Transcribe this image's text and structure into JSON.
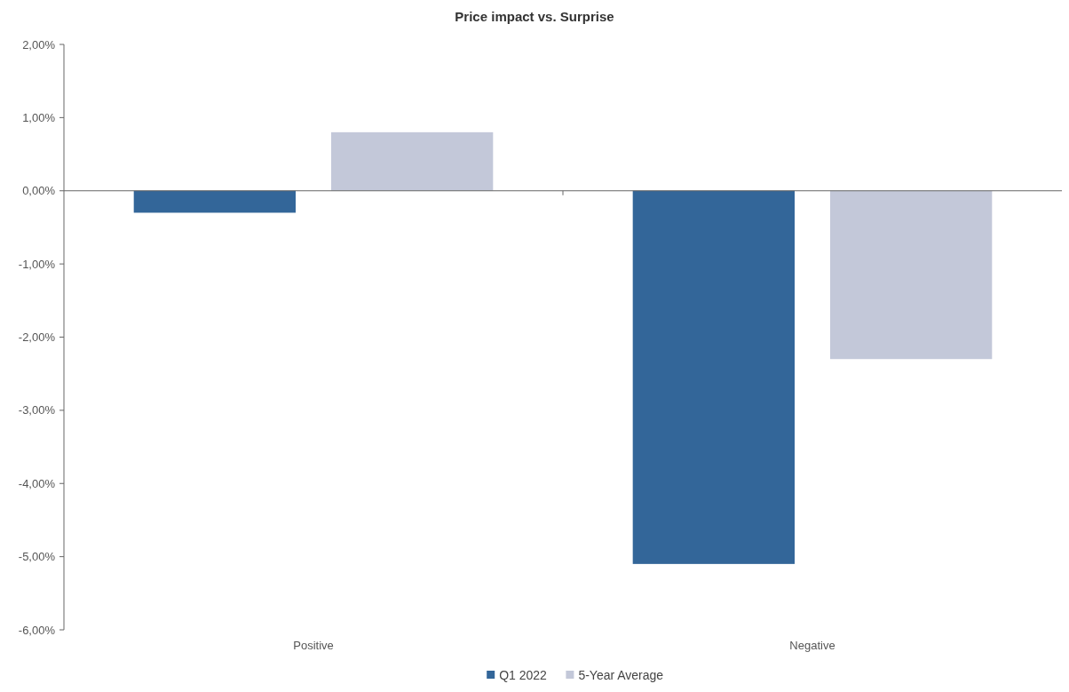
{
  "chart_data": {
    "type": "bar",
    "title": "Price impact vs. Surprise",
    "categories": [
      "Positive",
      "Negative"
    ],
    "series": [
      {
        "name": "Q1 2022",
        "color": "#336699",
        "values": [
          -0.3,
          -5.1
        ]
      },
      {
        "name": "5-Year Average",
        "color": "#c3c8d9",
        "values": [
          0.8,
          -2.3
        ]
      }
    ],
    "ylim": [
      -6,
      2
    ],
    "yticks": [
      {
        "value": 2,
        "label": "2,00%"
      },
      {
        "value": 1,
        "label": "1,00%"
      },
      {
        "value": 0,
        "label": "0,00%"
      },
      {
        "value": -1,
        "label": "-1,00%"
      },
      {
        "value": -2,
        "label": "-2,00%"
      },
      {
        "value": -3,
        "label": "-3,00%"
      },
      {
        "value": -4,
        "label": "-4,00%"
      },
      {
        "value": -5,
        "label": "-5,00%"
      },
      {
        "value": -6,
        "label": "-6,00%"
      }
    ],
    "legend": "bottom"
  }
}
